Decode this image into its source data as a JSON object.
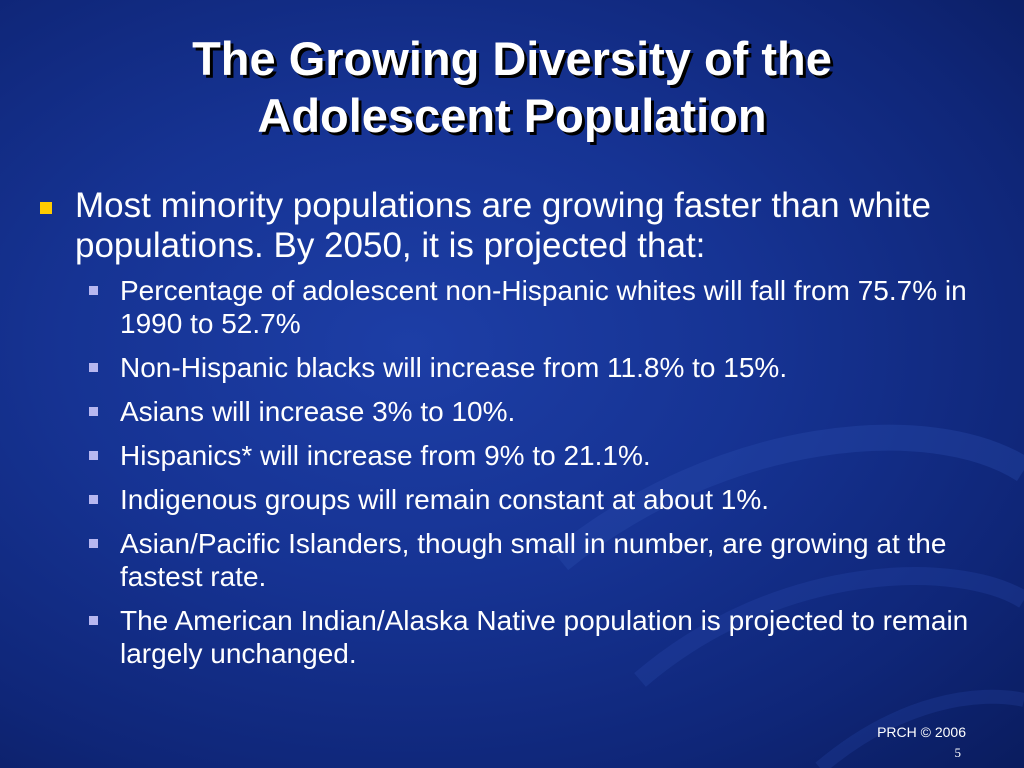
{
  "slide": {
    "title_line1": "The Growing Diversity of the",
    "title_line2": "Adolescent Population",
    "main_bullet": "Most minority populations are growing faster than white populations. By 2050, it is projected that:",
    "sub_bullets": [
      "Percentage of adolescent non-Hispanic whites will fall from 75.7% in 1990 to 52.7%",
      "Non-Hispanic blacks will increase from 11.8% to 15%.",
      "Asians will increase 3% to 10%.",
      "Hispanics* will increase from 9% to 21.1%.",
      "Indigenous groups will remain constant at about 1%.",
      "Asian/Pacific Islanders, though small in number, are growing at the fastest rate.",
      "The American Indian/Alaska Native population is projected to remain largely unchanged."
    ],
    "footer": "PRCH © 2006",
    "page_number": "5"
  },
  "colors": {
    "background": "#163393",
    "main_bullet": "#ffcc00",
    "sub_bullet": "#b7b7f0"
  }
}
